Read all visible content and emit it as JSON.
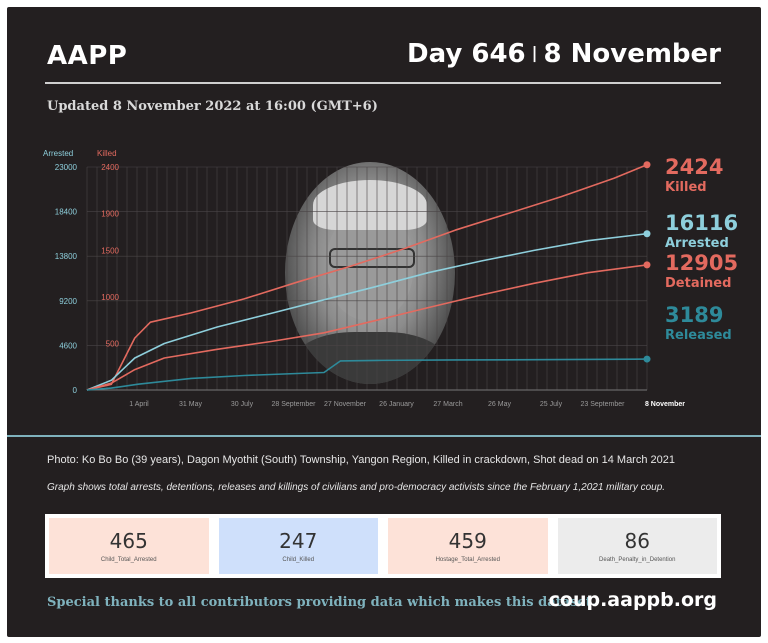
{
  "header": {
    "brand": "AAPP",
    "day": "Day 646",
    "separator": "|",
    "date": "8 November",
    "updated": "Updated 8 November 2022 at 16:00 (GMT+6)"
  },
  "chart_data": {
    "type": "line",
    "left_axis_label": "Arrested",
    "right_axis_label": "Killed",
    "left_ticks": [
      "23000",
      "18400",
      "13800",
      "9200",
      "4600",
      "0"
    ],
    "right_ticks": [
      "2400",
      "1900",
      "1500",
      "1000",
      "500"
    ],
    "x_tick_labels": [
      "1 April",
      "31 May",
      "30 July",
      "28 September",
      "27 November",
      "26 January",
      "27 March",
      "26 May",
      "25 July",
      "23 September",
      "8 November"
    ],
    "arrested_ylim": [
      0,
      23000
    ],
    "killed_ylim": [
      0,
      2400
    ],
    "grid": true,
    "series": [
      {
        "name": "Killed",
        "color": "#e36a5f",
        "axis": "right",
        "final": "2424",
        "x": [
          "2021-02-01",
          "2021-03-01",
          "2021-03-14",
          "2021-03-28",
          "2021-04-15",
          "2021-06-01",
          "2021-08-01",
          "2021-10-01",
          "2021-12-01",
          "2022-02-01",
          "2022-04-01",
          "2022-06-01",
          "2022-08-01",
          "2022-10-01",
          "2022-11-08"
        ],
        "values": [
          0,
          60,
          300,
          560,
          730,
          830,
          980,
          1160,
          1330,
          1520,
          1720,
          1900,
          2080,
          2280,
          2424
        ]
      },
      {
        "name": "Arrested",
        "color": "#8ecfdc",
        "axis": "left",
        "final": "16116",
        "x": [
          "2021-02-01",
          "2021-03-01",
          "2021-03-28",
          "2021-05-01",
          "2021-07-01",
          "2021-09-01",
          "2021-11-01",
          "2022-01-01",
          "2022-03-01",
          "2022-05-01",
          "2022-07-01",
          "2022-09-01",
          "2022-11-08"
        ],
        "values": [
          0,
          1000,
          3300,
          4800,
          6500,
          7900,
          9300,
          10700,
          12100,
          13300,
          14400,
          15400,
          16116
        ]
      },
      {
        "name": "Detained",
        "color": "#e36a5f",
        "axis": "left",
        "final": "12905",
        "x": [
          "2021-02-01",
          "2021-03-01",
          "2021-03-28",
          "2021-05-01",
          "2021-07-01",
          "2021-09-01",
          "2021-11-01",
          "2022-01-01",
          "2022-03-01",
          "2022-05-01",
          "2022-07-01",
          "2022-09-01",
          "2022-11-08"
        ],
        "values": [
          0,
          700,
          2100,
          3300,
          4200,
          5000,
          5900,
          7200,
          8500,
          9800,
          11000,
          12100,
          12905
        ]
      },
      {
        "name": "Released",
        "color": "#2e8a9a",
        "axis": "left",
        "final": "3189",
        "x": [
          "2021-02-01",
          "2021-03-01",
          "2021-04-01",
          "2021-06-01",
          "2021-08-01",
          "2021-10-01",
          "2021-11-01",
          "2021-11-20",
          "2022-01-01",
          "2022-04-01",
          "2022-07-01",
          "2022-11-08"
        ],
        "values": [
          0,
          200,
          600,
          1200,
          1500,
          1700,
          1800,
          3000,
          3050,
          3100,
          3130,
          3189
        ]
      }
    ]
  },
  "caption": "Photo: Ko Bo Bo (39 years), Dagon Myothit (South) Township, Yangon Region, Killed in crackdown, Shot dead on 14 March 2021",
  "note": "Graph shows total arrests, detentions, releases and killings of civilians and pro-democracy activists since the February 1,2021 military coup.",
  "stats": [
    {
      "value": "465",
      "label": "Child_Total_Arrested",
      "bg": "#fde2d8"
    },
    {
      "value": "247",
      "label": "Child_Killed",
      "bg": "#cfe0fb"
    },
    {
      "value": "459",
      "label": "Hostage_Total_Arrested",
      "bg": "#fde2d8"
    },
    {
      "value": "86",
      "label": "Death_Penalty_in_Detention",
      "bg": "#ececec"
    }
  ],
  "footer": {
    "thanks": "Special thanks to all contributors providing data which makes this dataset.",
    "site": "coup.aappb.org"
  }
}
